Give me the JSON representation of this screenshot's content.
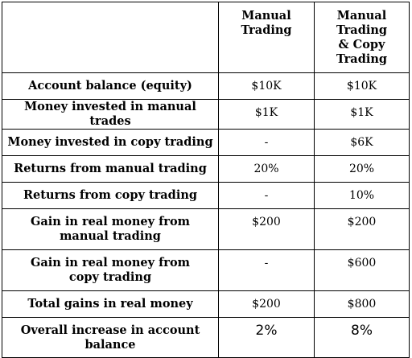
{
  "table": {
    "headers": [
      "",
      "Manual Trading",
      "Manual Trading & Copy Trading"
    ],
    "rows": [
      {
        "label": "Account balance (equity)",
        "manual": "$10K",
        "copy": "$10K"
      },
      {
        "label": "Money invested in manual trades",
        "manual": "$1K",
        "copy": "$1K"
      },
      {
        "label": "Money invested in copy trading",
        "manual": "-",
        "copy": "$6K"
      },
      {
        "label": "Returns from manual trading",
        "manual": "20%",
        "copy": "20%"
      },
      {
        "label": "Returns from copy trading",
        "manual": "-",
        "copy": "10%"
      },
      {
        "label": "Gain in real money from manual trading",
        "manual": "$200",
        "copy": "$200"
      },
      {
        "label": "Gain in real money from copy trading",
        "manual": "-",
        "copy": "$600"
      },
      {
        "label": "Total gains in real money",
        "manual": "$200",
        "copy": "$800"
      },
      {
        "label": "Overall increase in account balance",
        "manual": "2%",
        "copy": "8%"
      }
    ]
  }
}
